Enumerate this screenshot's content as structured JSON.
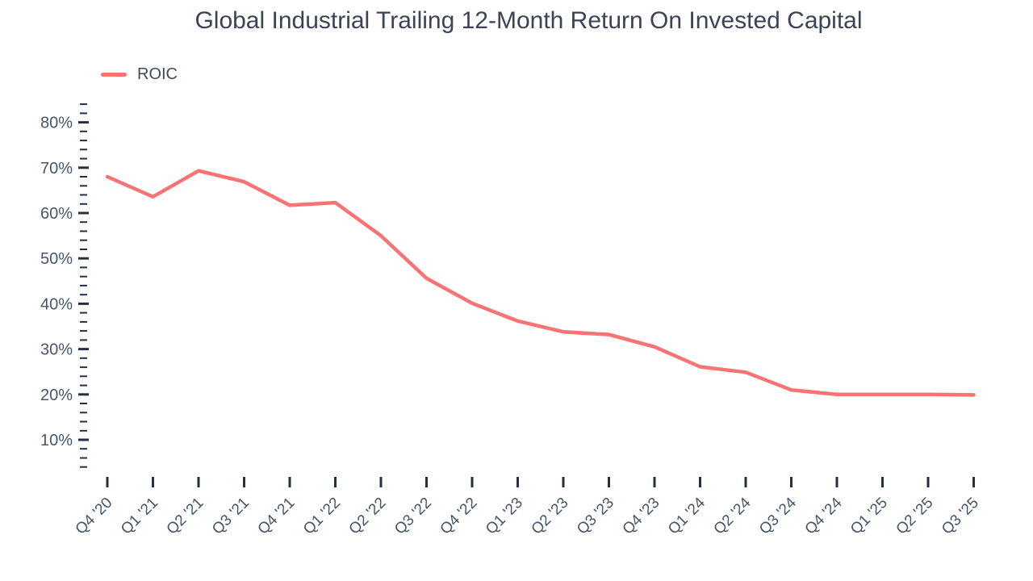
{
  "colors": {
    "background": "#ffffff",
    "title": "#3a4357",
    "axis_label": "#475569",
    "tick": "#27303f",
    "series": "#f87474"
  },
  "legend": {
    "items": [
      {
        "label": "ROIC",
        "color": "#f87474"
      }
    ]
  },
  "chart_data": {
    "type": "line",
    "title": "Global Industrial Trailing 12-Month Return On Invested Capital",
    "xlabel": "",
    "ylabel": "",
    "grid": false,
    "legend_position": "top-left",
    "categories": [
      "Q4 '20",
      "Q1 '21",
      "Q2 '21",
      "Q3 '21",
      "Q4 '21",
      "Q1 '22",
      "Q2 '22",
      "Q3 '22",
      "Q4 '22",
      "Q1 '23",
      "Q2 '23",
      "Q3 '23",
      "Q4 '23",
      "Q1 '24",
      "Q2 '24",
      "Q3 '24",
      "Q4 '24",
      "Q1 '25",
      "Q2 '25",
      "Q3 '25"
    ],
    "series": [
      {
        "name": "ROIC",
        "color": "#f87474",
        "values": [
          68.0,
          63.6,
          69.3,
          66.9,
          61.7,
          62.3,
          55.0,
          45.6,
          40.1,
          36.2,
          33.8,
          33.2,
          30.5,
          26.1,
          24.9,
          21.0,
          20.0,
          20.0,
          20.0,
          19.9
        ]
      }
    ],
    "y_axis": {
      "unit": "%",
      "label_min": 10,
      "label_max": 80,
      "major_step": 10,
      "minor_step": 2,
      "minor_min": 4,
      "minor_max": 84,
      "tick_labels": [
        "10%",
        "20%",
        "30%",
        "40%",
        "50%",
        "60%",
        "70%",
        "80%"
      ]
    }
  }
}
